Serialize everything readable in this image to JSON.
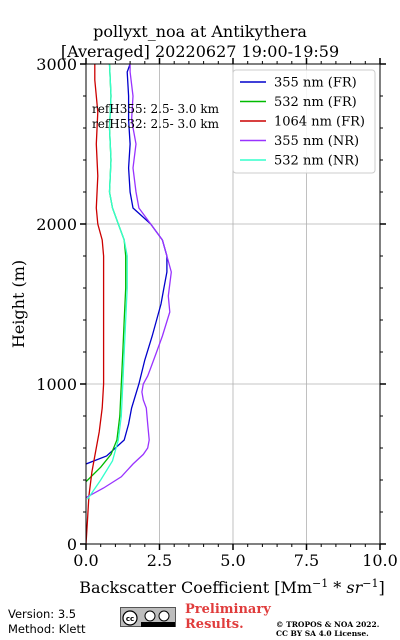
{
  "chart_data": {
    "type": "line",
    "title_line1": "pollyxt_noa at Antikythera",
    "title_line2": "[Averaged] 20220627 19:00-19:59",
    "xlabel": "Backscatter Coefficient [Mm",
    "xlabel_sup1": "−1",
    "xlabel_mid": " * sr",
    "xlabel_sup2": "−1",
    "xlabel_end": "]",
    "ylabel": "Height (m)",
    "xlim": [
      0,
      10
    ],
    "ylim": [
      0,
      3000
    ],
    "xticks": [
      "0.0",
      "2.5",
      "5.0",
      "7.5",
      "10.0"
    ],
    "yticks": [
      "0",
      "1000",
      "2000",
      "3000"
    ],
    "grid": true,
    "legend_position": "top-right",
    "annotations": [
      "refH355:  2.5- 3.0 km",
      "refH532:  2.5- 3.0 km"
    ],
    "series": [
      {
        "name": "355 nm (FR)",
        "color": "#0000cc",
        "points": [
          [
            0.0,
            500
          ],
          [
            0.7,
            550
          ],
          [
            1.3,
            650
          ],
          [
            1.45,
            750
          ],
          [
            1.55,
            850
          ],
          [
            1.8,
            1000
          ],
          [
            2.0,
            1150
          ],
          [
            2.25,
            1300
          ],
          [
            2.4,
            1400
          ],
          [
            2.55,
            1500
          ],
          [
            2.65,
            1600
          ],
          [
            2.75,
            1700
          ],
          [
            2.75,
            1800
          ],
          [
            2.6,
            1900
          ],
          [
            2.2,
            2000
          ],
          [
            1.9,
            2050
          ],
          [
            1.6,
            2100
          ],
          [
            1.5,
            2200
          ],
          [
            1.45,
            2350
          ],
          [
            1.5,
            2500
          ],
          [
            1.45,
            2650
          ],
          [
            1.45,
            2800
          ],
          [
            1.4,
            2950
          ],
          [
            1.5,
            3000
          ]
        ]
      },
      {
        "name": "532 nm (FR)",
        "color": "#00bb00",
        "points": [
          [
            -0.05,
            380
          ],
          [
            0.5,
            480
          ],
          [
            0.85,
            560
          ],
          [
            1.05,
            650
          ],
          [
            1.15,
            800
          ],
          [
            1.2,
            1000
          ],
          [
            1.25,
            1200
          ],
          [
            1.3,
            1400
          ],
          [
            1.35,
            1600
          ],
          [
            1.35,
            1800
          ],
          [
            1.3,
            1900
          ],
          [
            1.1,
            2000
          ],
          [
            0.9,
            2100
          ],
          [
            0.8,
            2200
          ],
          [
            0.85,
            2400
          ],
          [
            0.8,
            2600
          ],
          [
            0.85,
            2800
          ],
          [
            0.8,
            3000
          ]
        ]
      },
      {
        "name": "1064 nm (FR)",
        "color": "#cc0000",
        "points": [
          [
            0.0,
            0
          ],
          [
            0.05,
            150
          ],
          [
            0.1,
            300
          ],
          [
            0.2,
            450
          ],
          [
            0.3,
            550
          ],
          [
            0.45,
            700
          ],
          [
            0.55,
            850
          ],
          [
            0.6,
            1000
          ],
          [
            0.6,
            1400
          ],
          [
            0.6,
            1800
          ],
          [
            0.55,
            1900
          ],
          [
            0.4,
            2000
          ],
          [
            0.35,
            2100
          ],
          [
            0.4,
            2300
          ],
          [
            0.35,
            2500
          ],
          [
            0.4,
            2700
          ],
          [
            0.3,
            2900
          ],
          [
            0.3,
            3000
          ]
        ]
      },
      {
        "name": "355 nm (NR)",
        "color": "#9933ff",
        "points": [
          [
            0.0,
            290
          ],
          [
            0.6,
            350
          ],
          [
            1.2,
            420
          ],
          [
            1.6,
            500
          ],
          [
            1.95,
            560
          ],
          [
            2.1,
            600
          ],
          [
            2.15,
            650
          ],
          [
            2.1,
            750
          ],
          [
            2.05,
            850
          ],
          [
            1.95,
            900
          ],
          [
            1.9,
            950
          ],
          [
            1.95,
            1000
          ],
          [
            2.1,
            1050
          ],
          [
            2.2,
            1100
          ],
          [
            2.4,
            1200
          ],
          [
            2.6,
            1300
          ],
          [
            2.85,
            1450
          ],
          [
            2.8,
            1550
          ],
          [
            2.9,
            1700
          ],
          [
            2.75,
            1800
          ],
          [
            2.6,
            1900
          ],
          [
            2.2,
            2000
          ],
          [
            1.8,
            2100
          ],
          [
            1.7,
            2200
          ],
          [
            1.6,
            2350
          ],
          [
            1.7,
            2500
          ],
          [
            1.55,
            2650
          ],
          [
            1.6,
            2800
          ],
          [
            1.5,
            2950
          ],
          [
            1.5,
            3000
          ]
        ]
      },
      {
        "name": "532 nm (NR)",
        "color": "#33ffcc",
        "points": [
          [
            0.05,
            280
          ],
          [
            0.5,
            400
          ],
          [
            0.9,
            520
          ],
          [
            1.1,
            650
          ],
          [
            1.2,
            800
          ],
          [
            1.25,
            1000
          ],
          [
            1.3,
            1200
          ],
          [
            1.35,
            1400
          ],
          [
            1.4,
            1600
          ],
          [
            1.4,
            1800
          ],
          [
            1.3,
            1900
          ],
          [
            1.1,
            2000
          ],
          [
            0.9,
            2100
          ],
          [
            0.8,
            2200
          ],
          [
            0.85,
            2400
          ],
          [
            0.8,
            2600
          ],
          [
            0.85,
            2800
          ],
          [
            0.8,
            3000
          ]
        ]
      }
    ]
  },
  "footer": {
    "version": "Version: 3.5",
    "method": "Method: Klett",
    "preliminary_line1": "Preliminary",
    "preliminary_line2": "Results.",
    "copyright_line1": "© TROPOS & NOA 2022.",
    "copyright_line2": "CC BY SA 4.0 License."
  }
}
